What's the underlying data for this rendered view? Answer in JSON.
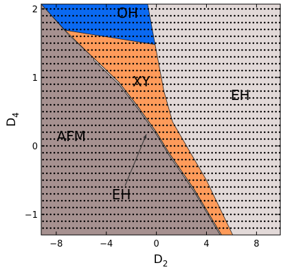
{
  "chart_data": {
    "type": "phase-diagram",
    "xlabel": {
      "base": "D",
      "sub": "2"
    },
    "ylabel": {
      "base": "D",
      "sub": "4"
    },
    "xlim": [
      -9.2,
      9.9
    ],
    "ylim": [
      -1.3,
      2.07
    ],
    "xticks": [
      -8,
      -4,
      0,
      4,
      8
    ],
    "xtick_labels": [
      "−8",
      "−4",
      "0",
      "4",
      "8"
    ],
    "yticks": [
      -1,
      0,
      1,
      2
    ],
    "ytick_labels": [
      "−1",
      "0",
      "1",
      "2"
    ],
    "regions": [
      {
        "name": "AFM",
        "color": "#a69190",
        "label_at": [
          -6.8,
          0.07
        ],
        "boundary": [
          [
            -9.2,
            2.07
          ],
          [
            -7.0,
            1.62
          ],
          [
            -5.0,
            1.28
          ],
          [
            -3.0,
            0.93
          ],
          [
            -1.5,
            0.58
          ],
          [
            0.0,
            0.2
          ],
          [
            1.0,
            -0.1
          ],
          [
            3.0,
            -0.63
          ],
          [
            5.2,
            -1.3
          ],
          [
            -9.2,
            -1.3
          ]
        ]
      },
      {
        "name": "XY",
        "color": "#fe9b5a",
        "label_at": [
          -1.2,
          0.87
        ],
        "boundary": [
          [
            -7.3,
            1.69
          ],
          [
            -0.1,
            1.48
          ],
          [
            0.6,
            0.8
          ],
          [
            1.3,
            0.35
          ],
          [
            4.0,
            -0.5
          ],
          [
            6.1,
            -1.3
          ],
          [
            5.2,
            -1.3
          ],
          [
            3.0,
            -0.63
          ],
          [
            1.0,
            -0.1
          ],
          [
            0.0,
            0.2
          ],
          [
            -1.5,
            0.58
          ],
          [
            -3.0,
            0.93
          ],
          [
            -5.0,
            1.28
          ]
        ]
      },
      {
        "name": "OH",
        "color": "#0a69f1",
        "label_at": [
          -2.3,
          1.87
        ],
        "boundary": [
          [
            -9.2,
            2.07
          ],
          [
            -0.7,
            2.07
          ],
          [
            -0.1,
            1.48
          ],
          [
            -7.3,
            1.69
          ]
        ]
      },
      {
        "name": "EH",
        "color": "#e2d9d8",
        "label_at": [
          6.7,
          0.67
        ],
        "boundary": [
          [
            -0.7,
            2.07
          ],
          [
            9.9,
            2.07
          ],
          [
            9.9,
            -1.3
          ],
          [
            6.1,
            -1.3
          ],
          [
            4.0,
            -0.5
          ],
          [
            1.3,
            0.35
          ],
          [
            0.6,
            0.8
          ],
          [
            -0.1,
            1.48
          ]
        ]
      }
    ],
    "thin_region": {
      "name": "EH",
      "boundary_upper": [
        [
          -5.0,
          1.28
        ],
        [
          -3.0,
          0.93
        ],
        [
          -1.5,
          0.58
        ],
        [
          0.0,
          0.2
        ],
        [
          1.0,
          -0.1
        ],
        [
          3.0,
          -0.63
        ],
        [
          5.2,
          -1.3
        ]
      ],
      "boundary_lower": [
        [
          -5.0,
          1.25
        ],
        [
          -3.0,
          0.9
        ],
        [
          -1.5,
          0.55
        ],
        [
          0.0,
          0.17
        ],
        [
          1.0,
          -0.13
        ],
        [
          3.0,
          -0.66
        ],
        [
          5.1,
          -1.3
        ]
      ]
    },
    "annotation": {
      "text": "EH",
      "text_at": [
        -2.8,
        -0.78
      ],
      "arrow_from": [
        -2.5,
        -0.58
      ],
      "arrow_to": [
        -0.8,
        0.17
      ]
    },
    "dotted_rows_y": [
      -1.2,
      -1.1,
      -1.0,
      -0.9,
      -0.8,
      -0.7,
      -0.6,
      -0.5,
      -0.4,
      -0.3,
      -0.2,
      -0.1,
      0.0,
      0.1,
      0.2,
      0.3,
      0.4,
      0.5,
      0.6,
      0.7,
      0.8,
      0.9,
      1.0,
      1.1,
      1.2,
      1.3,
      1.4,
      1.5,
      1.6,
      1.7,
      1.8,
      1.9,
      2.0
    ],
    "dot_step_x": 0.3
  }
}
